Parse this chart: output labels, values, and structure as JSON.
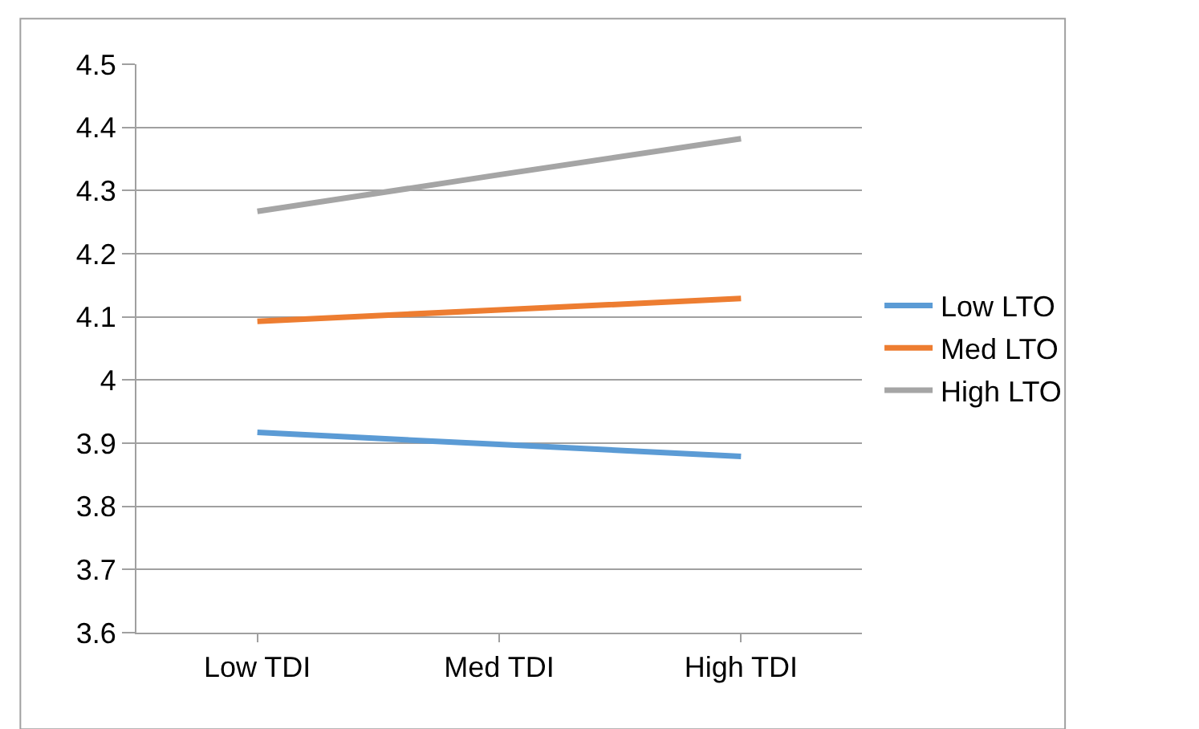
{
  "chart_data": {
    "type": "line",
    "categories": [
      "Low TDI",
      "Med TDI",
      "High TDI"
    ],
    "series": [
      {
        "name": "Low LTO",
        "color": "#5b9bd5",
        "values": [
          3.917,
          3.898,
          3.879
        ]
      },
      {
        "name": "Med LTO",
        "color": "#ed7d31",
        "values": [
          4.093,
          4.111,
          4.129
        ]
      },
      {
        "name": "High LTO",
        "color": "#a5a5a5",
        "values": [
          4.267,
          4.325,
          4.382
        ]
      }
    ],
    "ylim": [
      3.6,
      4.5
    ],
    "yticks": [
      3.6,
      3.7,
      3.8,
      3.9,
      {
        "value": 4,
        "label": "4"
      },
      4.1,
      4.2,
      4.3,
      4.4,
      4.5
    ],
    "grid": "y",
    "legend": "right",
    "marker": "none",
    "line_style": "solid"
  }
}
